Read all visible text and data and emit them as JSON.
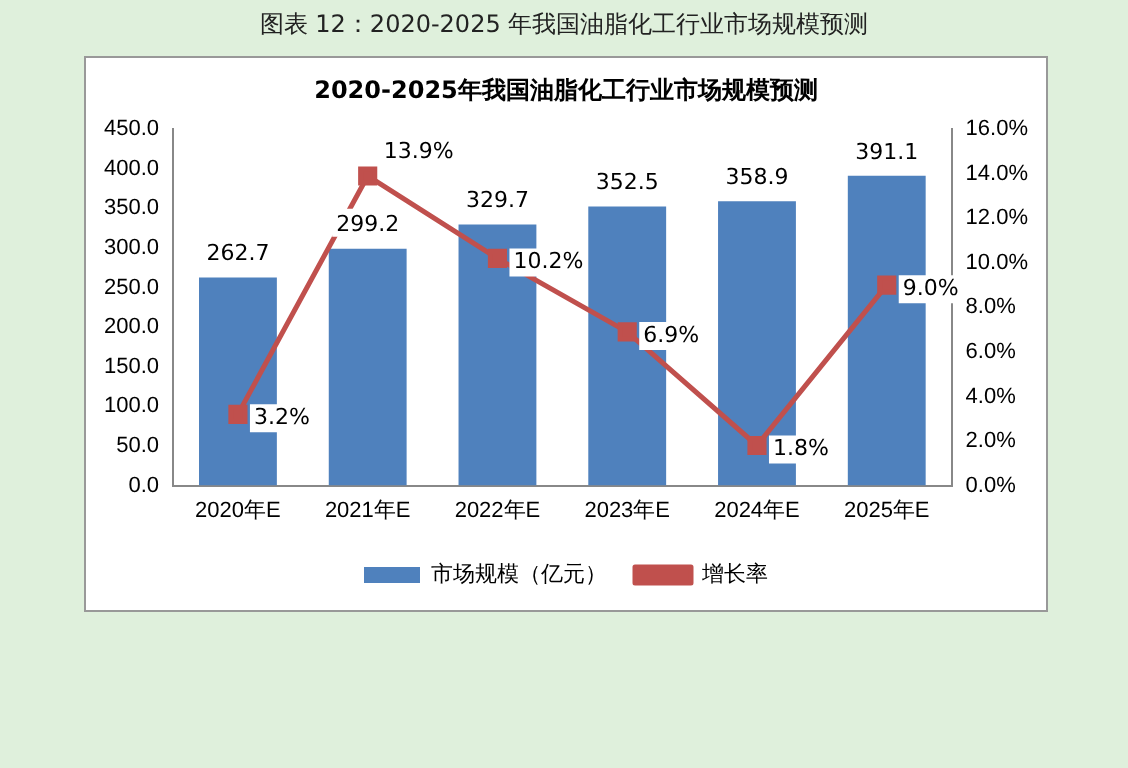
{
  "chart_data": {
    "type": "bar",
    "title": "图表 12：2020-2025 年我国油脂化工行业市场规模预测",
    "subtitle": "2020-2025年我国油脂化工行业市场规模预测",
    "categories": [
      "2020年E",
      "2021年E",
      "2022年E",
      "2023年E",
      "2024年E",
      "2025年E"
    ],
    "series": [
      {
        "name": "市场规模（亿元）",
        "color": "#4f81bd",
        "values": [
          262.7,
          299.2,
          329.7,
          352.5,
          358.9,
          391.1
        ],
        "value_labels": [
          "262.7",
          "299.2",
          "329.7",
          "352.5",
          "358.9",
          "391.1"
        ]
      },
      {
        "name": "增长率",
        "type": "line",
        "axis": "y2",
        "color": "#c0504d",
        "values": [
          3.2,
          13.9,
          10.2,
          6.9,
          1.8,
          9.0
        ],
        "value_labels": [
          "3.2%",
          "13.9%",
          "10.2%",
          "6.9%",
          "1.8%",
          "9.0%"
        ]
      }
    ],
    "ylim": [
      0,
      450
    ],
    "yticks": [
      {
        "value": 0,
        "label": "0.0"
      },
      {
        "value": 50,
        "label": "50.0"
      },
      {
        "value": 100,
        "label": "100.0"
      },
      {
        "value": 150,
        "label": "150.0"
      },
      {
        "value": 200,
        "label": "200.0"
      },
      {
        "value": 250,
        "label": "250.0"
      },
      {
        "value": 300,
        "label": "300.0"
      },
      {
        "value": 350,
        "label": "350.0"
      },
      {
        "value": 400,
        "label": "400.0"
      },
      {
        "value": 450,
        "label": "450.0"
      }
    ],
    "y2lim": [
      0,
      16
    ],
    "y2ticks": [
      {
        "value": 0,
        "label": "0.0%"
      },
      {
        "value": 2,
        "label": "2.0%"
      },
      {
        "value": 4,
        "label": "4.0%"
      },
      {
        "value": 6,
        "label": "6.0%"
      },
      {
        "value": 8,
        "label": "8.0%"
      },
      {
        "value": 10,
        "label": "10.0%"
      },
      {
        "value": 12,
        "label": "12.0%"
      },
      {
        "value": 14,
        "label": "14.0%"
      },
      {
        "value": 16,
        "label": "16.0%"
      }
    ],
    "legend": "bottom",
    "marker": "square",
    "line_style": "solid",
    "grid": false
  }
}
